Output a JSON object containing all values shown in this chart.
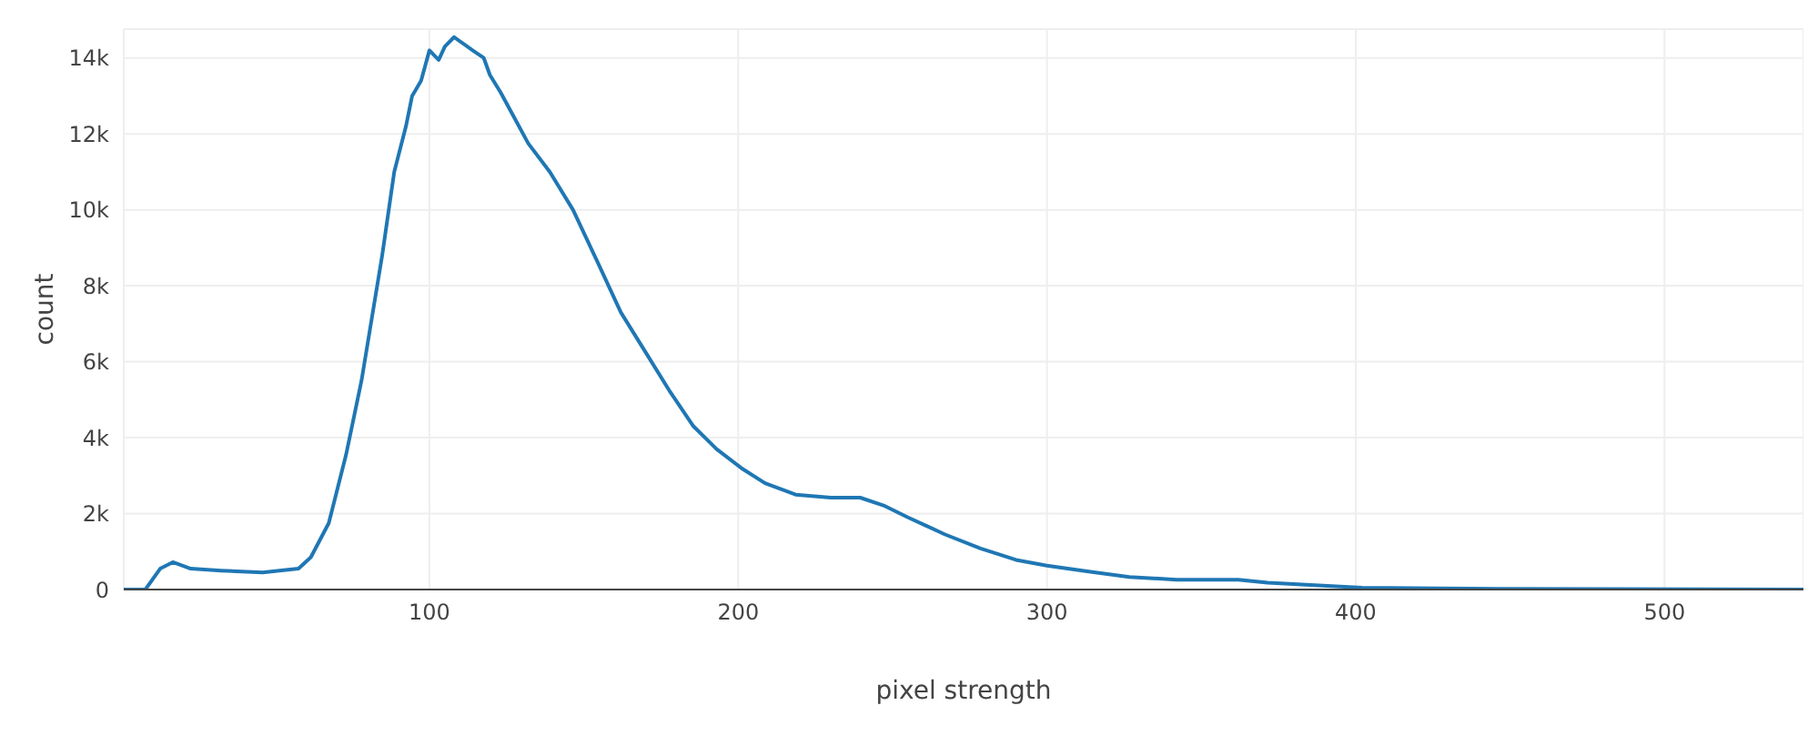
{
  "chart_data": {
    "type": "line",
    "xlabel": "pixel strength",
    "ylabel": "count",
    "xlim": [
      1,
      545
    ],
    "ylim": [
      0,
      14760
    ],
    "xticks": [
      100,
      200,
      300,
      400,
      500
    ],
    "yticks": [
      {
        "value": 0,
        "label": "0"
      },
      {
        "value": 2000,
        "label": "2k"
      },
      {
        "value": 4000,
        "label": "4k"
      },
      {
        "value": 6000,
        "label": "6k"
      },
      {
        "value": 8000,
        "label": "8k"
      },
      {
        "value": 10000,
        "label": "10k"
      },
      {
        "value": 12000,
        "label": "12k"
      },
      {
        "value": 14000,
        "label": "14k"
      }
    ],
    "grid": true,
    "marker": "none",
    "line_style": "solid",
    "x": [
      1,
      8,
      12.8,
      16.9,
      22.7,
      32.5,
      46,
      57.6,
      61.6,
      67.4,
      73,
      78,
      84.7,
      88.6,
      92.4,
      94.4,
      97.3,
      100,
      103,
      105,
      108,
      114,
      117.6,
      119.6,
      123,
      127,
      132,
      139,
      146.5,
      154.6,
      162,
      170,
      178,
      185.5,
      193,
      201,
      208.7,
      218.6,
      230,
      239.5,
      247.5,
      255,
      267,
      278.5,
      290,
      300,
      313,
      326.7,
      342,
      362,
      371.5,
      402,
      446,
      545
    ],
    "series": [
      {
        "color": "#1f77b4",
        "values": [
          0,
          0,
          550,
          720,
          550,
          500,
          450,
          550,
          850,
          1750,
          3550,
          5500,
          8800,
          11000,
          12200,
          13000,
          13400,
          14200,
          13950,
          14300,
          14550,
          14200,
          14000,
          13550,
          13100,
          12500,
          11750,
          11000,
          10000,
          8600,
          7300,
          6250,
          5200,
          4300,
          3700,
          3200,
          2800,
          2500,
          2420,
          2420,
          2200,
          1900,
          1450,
          1080,
          780,
          630,
          480,
          330,
          260,
          260,
          180,
          50,
          20,
          0
        ]
      }
    ]
  }
}
